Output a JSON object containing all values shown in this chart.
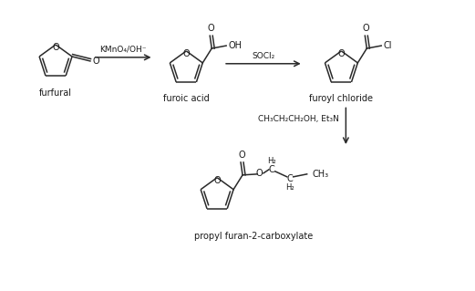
{
  "bg_color": "#ffffff",
  "figsize": [
    5.21,
    3.19
  ],
  "dpi": 100,
  "colors": {
    "line": "#2a2a2a",
    "text": "#1a1a1a",
    "bg": "#ffffff"
  },
  "labels": {
    "furfural": "furfural",
    "furoic_acid": "furoic acid",
    "furoyl_chloride": "furoyl chloride",
    "product": "propyl furan-2-carboxylate",
    "reagent1": "KMnO₄/OH⁻",
    "reagent2": "SOCl₂",
    "reagent3": "CH₃CH₂CH₂OH, Et₃N"
  }
}
